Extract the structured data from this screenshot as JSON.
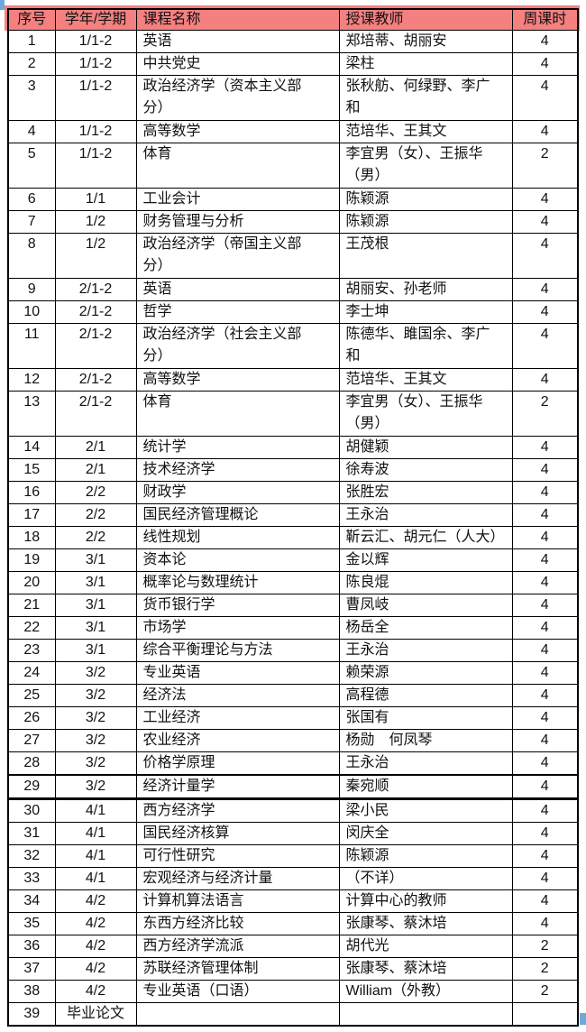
{
  "colors": {
    "header_background": "#F48080",
    "header_text": "#000000",
    "table_border": "#000000",
    "selection_handle_blue": "#6FA8DC",
    "page_background": "#FFFFFF"
  },
  "table": {
    "columns": [
      {
        "key": "seq",
        "label": "序号",
        "align": "center"
      },
      {
        "key": "term",
        "label": "学年/学期",
        "align": "center"
      },
      {
        "key": "course",
        "label": "课程名称",
        "align": "left"
      },
      {
        "key": "teacher",
        "label": "授课教师",
        "align": "left"
      },
      {
        "key": "hours",
        "label": "周课时",
        "align": "center"
      }
    ],
    "rows": [
      {
        "seq": "1",
        "term": "1/1-2",
        "course": "英语",
        "teacher": "郑培蒂、胡丽安",
        "hours": "4",
        "tall": false
      },
      {
        "seq": "2",
        "term": "1/1-2",
        "course": "中共党史",
        "teacher": "梁柱",
        "hours": "4",
        "tall": false
      },
      {
        "seq": "3",
        "term": "1/1-2",
        "course": "政治经济学（资本主义部\n分）",
        "teacher": "张秋舫、何绿野、李广\n和",
        "hours": "4",
        "tall": true
      },
      {
        "seq": "4",
        "term": "1/1-2",
        "course": "高等数学",
        "teacher": "范培华、王其文",
        "hours": "4",
        "tall": false
      },
      {
        "seq": "5",
        "term": "1/1-2",
        "course": "体育",
        "teacher": "李宜男（女）、王振华\n（男）",
        "hours": "2",
        "tall": true
      },
      {
        "seq": "6",
        "term": "1/1",
        "course": "工业会计",
        "teacher": "陈颖源",
        "hours": "4",
        "tall": false
      },
      {
        "seq": "7",
        "term": "1/2",
        "course": "财务管理与分析",
        "teacher": "陈颖源",
        "hours": "4",
        "tall": false
      },
      {
        "seq": "8",
        "term": "1/2",
        "course": "政治经济学（帝国主义部\n分）",
        "teacher": "王茂根",
        "hours": "4",
        "tall": true
      },
      {
        "seq": "9",
        "term": "2/1-2",
        "course": "英语",
        "teacher": "胡丽安、孙老师",
        "hours": "4",
        "tall": false
      },
      {
        "seq": "10",
        "term": "2/1-2",
        "course": "哲学",
        "teacher": "李士坤",
        "hours": "4",
        "tall": false
      },
      {
        "seq": "11",
        "term": "2/1-2",
        "course": "政治经济学（社会主义部\n分）",
        "teacher": "陈德华、雎国余、李广\n和",
        "hours": "4",
        "tall": true
      },
      {
        "seq": "12",
        "term": "2/1-2",
        "course": "高等数学",
        "teacher": "范培华、王其文",
        "hours": "4",
        "tall": false
      },
      {
        "seq": "13",
        "term": "2/1-2",
        "course": "体育",
        "teacher": "李宜男（女）、王振华\n（男）",
        "hours": "2",
        "tall": true
      },
      {
        "seq": "14",
        "term": "2/1",
        "course": "统计学",
        "teacher": "胡健颖",
        "hours": "4",
        "tall": false
      },
      {
        "seq": "15",
        "term": "2/1",
        "course": "技术经济学",
        "teacher": "徐寿波",
        "hours": "4",
        "tall": false
      },
      {
        "seq": "16",
        "term": "2/2",
        "course": "财政学",
        "teacher": "张胜宏",
        "hours": "4",
        "tall": false
      },
      {
        "seq": "17",
        "term": "2/2",
        "course": "国民经济管理概论",
        "teacher": "王永治",
        "hours": "4",
        "tall": false
      },
      {
        "seq": "18",
        "term": "2/2",
        "course": "线性规划",
        "teacher": "靳云汇、胡元仁（人大）",
        "hours": "4",
        "tall": false
      },
      {
        "seq": "19",
        "term": "3/1",
        "course": "资本论",
        "teacher": "金以辉",
        "hours": "4",
        "tall": false
      },
      {
        "seq": "20",
        "term": "3/1",
        "course": "概率论与数理统计",
        "teacher": "陈良焜",
        "hours": "4",
        "tall": false
      },
      {
        "seq": "21",
        "term": "3/1",
        "course": "货币银行学",
        "teacher": "曹凤岐",
        "hours": "4",
        "tall": false
      },
      {
        "seq": "22",
        "term": "3/1",
        "course": "市场学",
        "teacher": "杨岳全",
        "hours": "4",
        "tall": false
      },
      {
        "seq": "23",
        "term": "3/1",
        "course": "综合平衡理论与方法",
        "teacher": "王永治",
        "hours": "4",
        "tall": false
      },
      {
        "seq": "24",
        "term": "3/2",
        "course": "专业英语",
        "teacher": "赖荣源",
        "hours": "4",
        "tall": false
      },
      {
        "seq": "25",
        "term": "3/2",
        "course": "经济法",
        "teacher": "高程德",
        "hours": "4",
        "tall": false
      },
      {
        "seq": "26",
        "term": "3/2",
        "course": "工业经济",
        "teacher": "张国有",
        "hours": "4",
        "tall": false
      },
      {
        "seq": "27",
        "term": "3/2",
        "course": "农业经济",
        "teacher": "杨勋　何凤琴",
        "hours": "4",
        "tall": false
      },
      {
        "seq": "28",
        "term": "3/2",
        "course": "价格学原理",
        "teacher": "王永治",
        "hours": "4",
        "tall": false,
        "seam": "minor"
      },
      {
        "seq": "29",
        "term": "3/2",
        "course": "经济计量学",
        "teacher": "秦宛顺",
        "hours": "4",
        "tall": false,
        "seam": "major"
      },
      {
        "seq": "30",
        "term": "4/1",
        "course": "西方经济学",
        "teacher": "梁小民",
        "hours": "4",
        "tall": false
      },
      {
        "seq": "31",
        "term": "4/1",
        "course": "国民经济核算",
        "teacher": "闵庆全",
        "hours": "4",
        "tall": false
      },
      {
        "seq": "32",
        "term": "4/1",
        "course": "可行性研究",
        "teacher": "陈颖源",
        "hours": "4",
        "tall": false
      },
      {
        "seq": "33",
        "term": "4/1",
        "course": "宏观经济与经济计量",
        "teacher": "（不详）",
        "hours": "4",
        "tall": false
      },
      {
        "seq": "34",
        "term": "4/2",
        "course": "计算机算法语言",
        "teacher": "计算中心的教师",
        "hours": "4",
        "tall": false
      },
      {
        "seq": "35",
        "term": "4/2",
        "course": "东西方经济比较",
        "teacher": "张康琴、蔡沐培",
        "hours": "4",
        "tall": false
      },
      {
        "seq": "36",
        "term": "4/2",
        "course": "西方经济学流派",
        "teacher": "胡代光",
        "hours": "2",
        "tall": false
      },
      {
        "seq": "37",
        "term": "4/2",
        "course": "苏联经济管理体制",
        "teacher": "张康琴、蔡沐培",
        "hours": "2",
        "tall": false
      },
      {
        "seq": "38",
        "term": "4/2",
        "course": "专业英语（口语）",
        "teacher": "William（外教）",
        "hours": "2",
        "tall": false
      },
      {
        "seq": "39",
        "term": "毕业论文",
        "course": "",
        "teacher": "",
        "hours": "",
        "tall": false
      }
    ]
  }
}
